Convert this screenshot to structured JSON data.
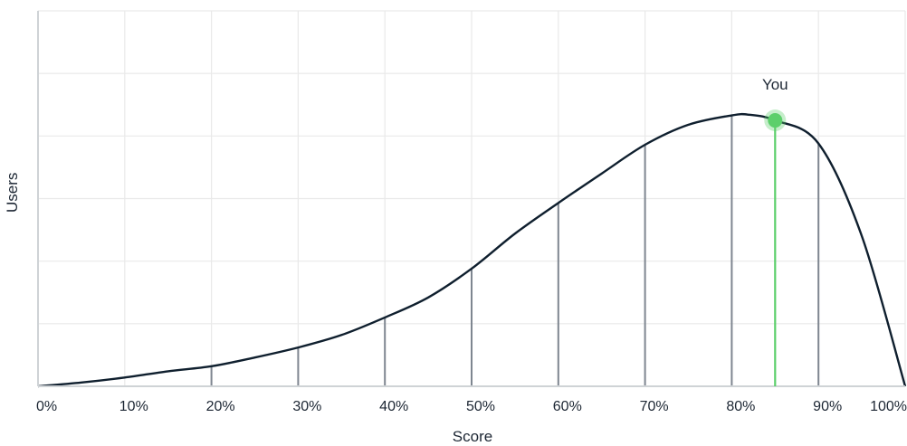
{
  "chart_data": {
    "type": "line",
    "xlabel": "Score",
    "ylabel": "Users",
    "xlim": [
      0,
      100
    ],
    "ylim": [
      0,
      6
    ],
    "grid": true,
    "x_ticks": [
      "0%",
      "10%",
      "20%",
      "30%",
      "40%",
      "50%",
      "60%",
      "70%",
      "80%",
      "90%",
      "100%"
    ],
    "series": [
      {
        "x": [
          0,
          5,
          10,
          15,
          20,
          25,
          30,
          35,
          40,
          45,
          50,
          55,
          60,
          65,
          70,
          75,
          80,
          82,
          85,
          90,
          95,
          100
        ],
        "y": [
          0.0,
          0.06,
          0.14,
          0.24,
          0.32,
          0.46,
          0.62,
          0.82,
          1.1,
          1.42,
          1.88,
          2.44,
          2.93,
          3.4,
          3.86,
          4.18,
          4.33,
          4.34,
          4.25,
          3.88,
          2.4,
          0.0
        ]
      }
    ],
    "drop_lines": [
      {
        "x": 20,
        "y": 0.32
      },
      {
        "x": 30,
        "y": 0.62
      },
      {
        "x": 40,
        "y": 1.1
      },
      {
        "x": 50,
        "y": 1.88
      },
      {
        "x": 60,
        "y": 2.93
      },
      {
        "x": 70,
        "y": 3.86
      },
      {
        "x": 80,
        "y": 4.33
      },
      {
        "x": 90,
        "y": 3.88
      }
    ],
    "marker": {
      "label": "You",
      "x": 85,
      "y": 4.25,
      "color": "#5ccf6b"
    },
    "line_color": "#0f1f2e",
    "drop_line_color": "#7e8690",
    "grid_color": "#e9e9e9"
  }
}
